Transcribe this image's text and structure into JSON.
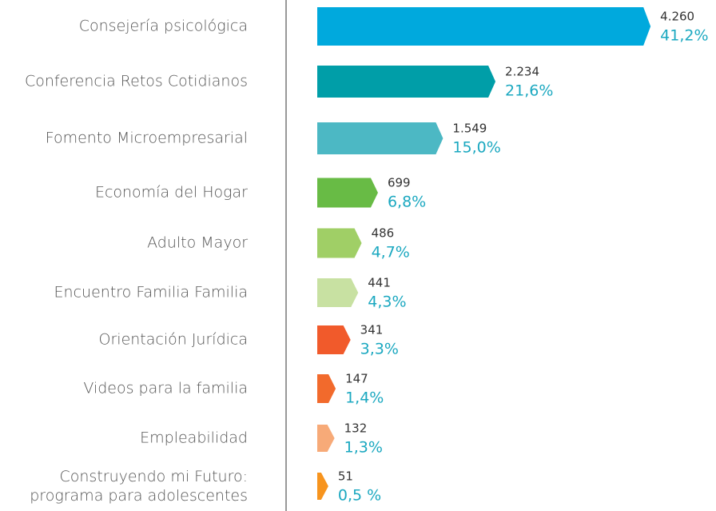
{
  "chart_data": {
    "type": "bar",
    "orientation": "horizontal",
    "categories": [
      "Consejería psicológica",
      "Conferencia Retos Cotidianos",
      "Fomento Microempresarial",
      "Economía del Hogar",
      "Adulto Mayor",
      "Encuentro Familia Familia",
      "Orientación Jurídica",
      "Videos para la familia",
      "Empleabilidad",
      "Construyendo mi Futuro:\nprograma para adolescentes"
    ],
    "values": [
      4260,
      2234,
      1549,
      699,
      486,
      441,
      341,
      147,
      132,
      51
    ],
    "value_labels": [
      "4.260",
      "2.234",
      "1.549",
      "699",
      "486",
      "441",
      "341",
      "147",
      "132",
      "51"
    ],
    "shares": [
      41.2,
      21.6,
      15.0,
      6.8,
      4.7,
      4.3,
      3.3,
      1.4,
      1.3,
      0.5
    ],
    "share_labels": [
      "41,2%",
      "21,6%",
      "15,0%",
      "6,8%",
      "4,7%",
      "4,3%",
      "3,3%",
      "1,4%",
      "1,3%",
      "0,5 %"
    ],
    "colors": [
      "#00a9dd",
      "#009ea8",
      "#4cb8c4",
      "#68bb45",
      "#a0cf66",
      "#c8e1a2",
      "#f15a2b",
      "#f26a2c",
      "#f7aa78",
      "#f7941e"
    ],
    "share_color": "#1ba8c0"
  }
}
